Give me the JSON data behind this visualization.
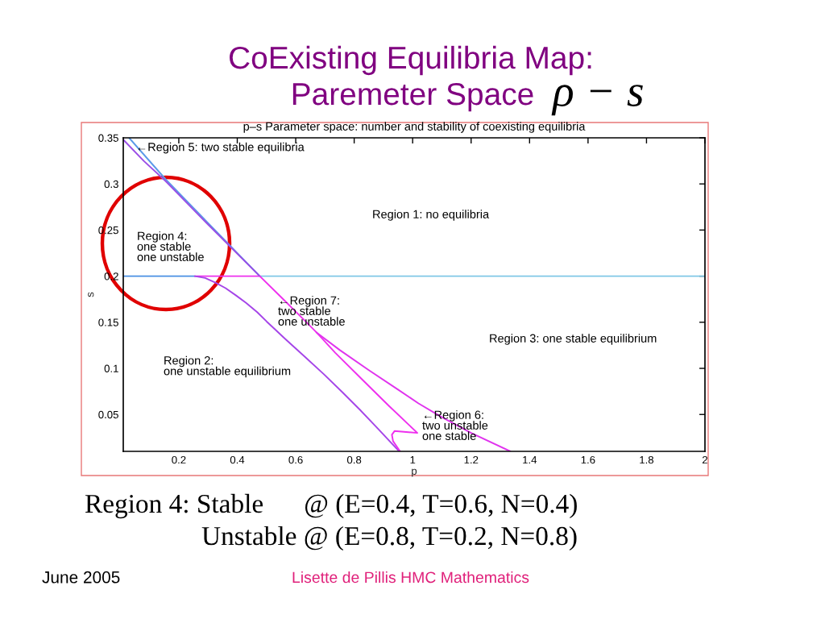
{
  "chart_data": {
    "type": "line",
    "title": "CoExisting Equilibria Map:",
    "subtitle": "Paremeter Space",
    "xlabel": "p",
    "ylabel": "s",
    "xlim": [
      0.01,
      2
    ],
    "ylim": [
      0.01,
      0.35
    ],
    "xticks": [
      0.2,
      0.4,
      0.6,
      0.8,
      1,
      1.2,
      1.4,
      1.6,
      1.8,
      2
    ],
    "yticks": [
      0.05,
      0.1,
      0.15,
      0.2,
      0.25,
      0.3,
      0.35
    ],
    "line_style": "solid",
    "series": [
      {
        "color": "#4a8fe4",
        "x": [
          0.01,
          0.255
        ],
        "values": [
          0.2,
          0.2
        ]
      },
      {
        "color": "#ee30ee",
        "x": [
          0.255,
          0.477
        ],
        "values": [
          0.2,
          0.2
        ]
      },
      {
        "color": "#80c8e6",
        "x": [
          0.477,
          2
        ],
        "values": [
          0.2,
          0.2
        ]
      },
      {
        "color": "#5a9ae8",
        "x": [
          0.03,
          0.155,
          0.357,
          0.477
        ],
        "values": [
          0.35,
          0.305,
          0.239,
          0.2
        ]
      },
      {
        "color": "#9a4fe6",
        "x": [
          0.01,
          0.08,
          0.155,
          0.3,
          0.477
        ],
        "values": [
          0.348,
          0.325,
          0.303,
          0.256,
          0.2
        ]
      },
      {
        "color": "#a545e8",
        "x": [
          0.255,
          0.29,
          0.325,
          0.36,
          0.396,
          0.43,
          0.468,
          0.5,
          0.567,
          0.63,
          0.695,
          0.76,
          0.82,
          0.88,
          0.951
        ],
        "values": [
          0.2,
          0.198,
          0.193,
          0.187,
          0.179,
          0.171,
          0.161,
          0.151,
          0.131,
          0.113,
          0.094,
          0.074,
          0.055,
          0.035,
          0.011
        ]
      },
      {
        "color": "#ee30ee",
        "x": [
          0.477,
          0.551,
          0.643,
          0.671,
          0.735,
          0.827,
          0.92,
          1.016,
          0.938,
          0.929,
          0.933,
          0.957
        ],
        "values": [
          0.2,
          0.177,
          0.148,
          0.139,
          0.117,
          0.088,
          0.059,
          0.03,
          0.032,
          0.028,
          0.021,
          0.01
        ]
      },
      {
        "color": "#e033ee",
        "x": [
          0.671,
          0.75,
          0.85,
          0.95,
          1.02,
          1.1,
          1.2,
          1.334
        ],
        "values": [
          0.139,
          0.12,
          0.098,
          0.077,
          0.062,
          0.047,
          0.03,
          0.01
        ]
      }
    ],
    "annotations": [
      "ρ − s",
      "p–s Parameter space: number and stability of coexisting equilibria",
      {
        "text": "←Region 5: two stable equilibria",
        "x": 0.053,
        "y": 0.339
      },
      "Region 1: no equilibria",
      "Region 4:\none stable\none unstable",
      "←Region 7:\ntwo stable\none unstable",
      "Region 3: one stable equilibrium",
      "Region 2:\none unstable equilibrium",
      "←Region 6:\ntwo unstable\none stable",
      "Region 4: Stable      @ (E=0.4, T=0.6, N=0.4)",
      "Unstable @ (E=0.8, T=0.2, N=0.8)",
      "June 2005",
      "Lisette de Pillis HMC Mathematics"
    ]
  }
}
